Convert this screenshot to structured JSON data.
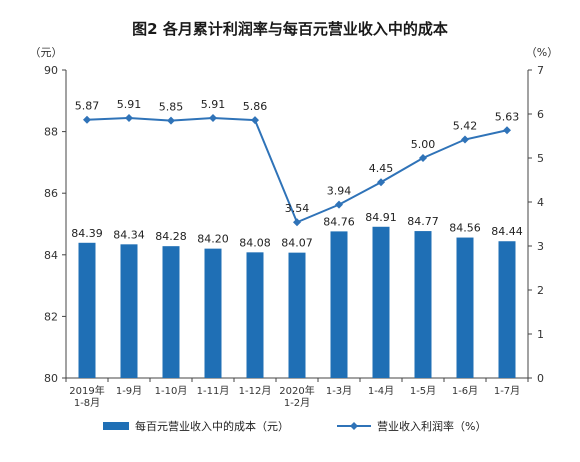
{
  "chart_data": {
    "type": "bar",
    "title": "图2  各月累计利润率与每百元营业收入中的成本",
    "categories": [
      [
        "2019年",
        "1-8月"
      ],
      [
        "1-9月"
      ],
      [
        "1-10月"
      ],
      [
        "1-11月"
      ],
      [
        "1-12月"
      ],
      [
        "2020年",
        "1-2月"
      ],
      [
        "1-3月"
      ],
      [
        "1-4月"
      ],
      [
        "1-5月"
      ],
      [
        "1-6月"
      ],
      [
        "1-7月"
      ]
    ],
    "series": [
      {
        "name": "每百元营业收入中的成本（元）",
        "type": "bar",
        "axis": "left",
        "color": "#1f6fb5",
        "values": [
          84.39,
          84.34,
          84.28,
          84.2,
          84.08,
          84.07,
          84.76,
          84.91,
          84.77,
          84.56,
          84.44
        ]
      },
      {
        "name": "营业收入利润率（%）",
        "type": "line",
        "axis": "right",
        "color": "#2f73b8",
        "values": [
          5.87,
          5.91,
          5.85,
          5.91,
          5.86,
          3.54,
          3.94,
          4.45,
          5.0,
          5.42,
          5.63
        ]
      }
    ],
    "y_left": {
      "unit": "（元）",
      "min": 80,
      "max": 90,
      "ticks": [
        80,
        82,
        84,
        86,
        88,
        90
      ]
    },
    "y_right": {
      "unit": "（%）",
      "min": 0,
      "max": 7,
      "ticks": [
        0,
        1,
        2,
        3,
        4,
        5,
        6,
        7
      ]
    },
    "grid": false,
    "legend_position": "bottom"
  }
}
